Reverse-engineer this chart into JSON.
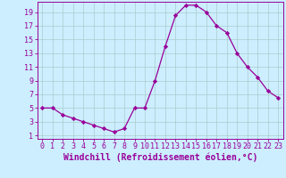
{
  "hours": [
    0,
    1,
    2,
    3,
    4,
    5,
    6,
    7,
    8,
    9,
    10,
    11,
    12,
    13,
    14,
    15,
    16,
    17,
    18,
    19,
    20,
    21,
    22,
    23
  ],
  "values": [
    5,
    5,
    4,
    3.5,
    3,
    2.5,
    2,
    1.5,
    2,
    5,
    5,
    9,
    14,
    18.5,
    20,
    20,
    19,
    17,
    16,
    13,
    11,
    9.5,
    7.5,
    6.5
  ],
  "line_color": "#990099",
  "marker": "D",
  "marker_size": 2.2,
  "bg_color": "#cceeff",
  "grid_color": "#aacccc",
  "xlabel": "Windchill (Refroidissement éolien,°C)",
  "xlabel_color": "#990099",
  "xlabel_fontsize": 7,
  "yticks": [
    1,
    3,
    5,
    7,
    9,
    11,
    13,
    15,
    17,
    19
  ],
  "xticks": [
    0,
    1,
    2,
    3,
    4,
    5,
    6,
    7,
    8,
    9,
    10,
    11,
    12,
    13,
    14,
    15,
    16,
    17,
    18,
    19,
    20,
    21,
    22,
    23
  ],
  "ylim": [
    0.5,
    20.5
  ],
  "xlim": [
    -0.5,
    23.5
  ],
  "tick_color": "#990099",
  "tick_fontsize": 6,
  "spine_color": "#990099",
  "linewidth": 0.9
}
